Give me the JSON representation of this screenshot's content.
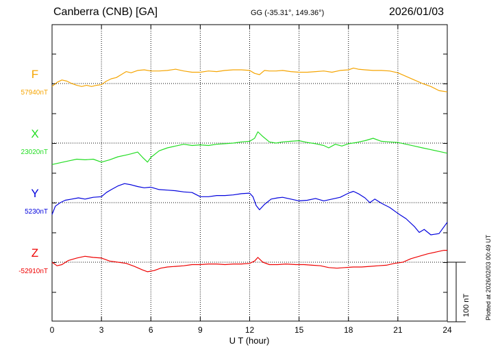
{
  "header": {
    "station": "Canberra (CNB)  [GA]",
    "coords": "GG (-35.31°, 149.36°)",
    "date": "2026/01/03"
  },
  "plotted_note": "Plotted at 2026/02/03 00:49 UT",
  "colors": {
    "F": "#f5a400",
    "X": "#22dd22",
    "Y": "#0000dd",
    "Z": "#ee0000"
  },
  "chart_data": {
    "type": "line",
    "title": "",
    "xlabel": "U T (hour)",
    "xlim": [
      0,
      24
    ],
    "xticks": [
      0,
      3,
      6,
      9,
      12,
      15,
      18,
      21,
      24
    ],
    "x_tick_labels": [
      "0",
      "3",
      "6",
      "9",
      "12",
      "15",
      "18",
      "21",
      "24"
    ],
    "scale_bar": {
      "label": "100 nT",
      "value_nT": 100
    },
    "series": [
      {
        "name": "F",
        "baseline_label": "57940nT",
        "baseline_nT": 57940,
        "x": [
          0,
          0.3,
          0.6,
          0.9,
          1.2,
          1.5,
          1.8,
          2.1,
          2.4,
          2.7,
          3,
          3.3,
          3.6,
          3.9,
          4.2,
          4.5,
          4.8,
          5.2,
          5.6,
          6,
          6.5,
          7,
          7.5,
          8,
          8.5,
          9,
          9.5,
          10,
          10.5,
          11,
          11.5,
          12,
          12.3,
          12.6,
          12.9,
          13.2,
          13.6,
          14,
          14.5,
          15,
          15.5,
          16,
          16.5,
          17,
          17.5,
          18,
          18.3,
          18.6,
          19,
          19.5,
          20,
          20.5,
          21,
          21.5,
          22,
          22.5,
          23,
          23.5,
          24
        ],
        "y": [
          57935,
          57942,
          57946,
          57944,
          57940,
          57937,
          57935,
          57937,
          57935,
          57937,
          57938,
          57944,
          57948,
          57950,
          57955,
          57960,
          57958,
          57962,
          57963,
          57961,
          57961,
          57962,
          57964,
          57961,
          57959,
          57959,
          57961,
          57960,
          57962,
          57963,
          57963,
          57962,
          57957,
          57955,
          57962,
          57961,
          57961,
          57962,
          57960,
          57959,
          57959,
          57960,
          57961,
          57959,
          57962,
          57963,
          57966,
          57964,
          57963,
          57962,
          57962,
          57961,
          57958,
          57952,
          57946,
          57940,
          57935,
          57928,
          57926
        ]
      },
      {
        "name": "X",
        "baseline_label": "23020nT",
        "baseline_nT": 23020,
        "x": [
          0,
          0.5,
          1,
          1.5,
          2,
          2.5,
          3,
          3.5,
          4,
          4.5,
          4.8,
          5.2,
          5.5,
          5.8,
          6,
          6.5,
          7,
          7.5,
          8,
          8.5,
          9,
          9.5,
          10,
          10.5,
          11,
          11.5,
          12,
          12.3,
          12.5,
          12.8,
          13.2,
          13.6,
          14,
          14.5,
          15,
          15.5,
          16,
          16.5,
          16.8,
          17.2,
          17.6,
          18,
          18.5,
          19,
          19.5,
          20,
          20.5,
          21,
          21.5,
          22,
          22.5,
          23,
          23.5,
          24
        ],
        "y": [
          22984,
          22987,
          22990,
          22993,
          22992,
          22993,
          22988,
          22992,
          22997,
          23000,
          23002,
          23005,
          22996,
          22988,
          22996,
          23007,
          23012,
          23015,
          23018,
          23016,
          23017,
          23016,
          23018,
          23019,
          23020,
          23022,
          23023,
          23028,
          23039,
          23031,
          23022,
          23020,
          23022,
          23023,
          23024,
          23021,
          23019,
          23016,
          23012,
          23018,
          23015,
          23019,
          23021,
          23024,
          23028,
          23023,
          23022,
          23021,
          23018,
          23015,
          23012,
          23009,
          23006,
          23003
        ]
      },
      {
        "name": "Y",
        "baseline_label": "5230nT",
        "baseline_nT": 5230,
        "x": [
          0,
          0.2,
          0.5,
          0.8,
          1.2,
          1.6,
          2,
          2.5,
          3,
          3.3,
          3.6,
          4,
          4.4,
          4.8,
          5.2,
          5.6,
          6,
          6.5,
          7,
          7.5,
          8,
          8.5,
          9,
          9.5,
          10,
          10.5,
          11,
          11.5,
          12,
          12.2,
          12.4,
          12.6,
          12.9,
          13.3,
          13.7,
          14,
          14.5,
          15,
          15.5,
          16,
          16.5,
          17,
          17.5,
          18,
          18.3,
          18.6,
          19,
          19.3,
          19.6,
          20,
          20.5,
          21,
          21.5,
          22,
          22.3,
          22.6,
          23,
          23.5,
          24
        ],
        "y": [
          5210,
          5224,
          5230,
          5234,
          5236,
          5238,
          5236,
          5239,
          5240,
          5247,
          5252,
          5258,
          5262,
          5260,
          5257,
          5255,
          5256,
          5252,
          5251,
          5250,
          5248,
          5247,
          5240,
          5240,
          5242,
          5242,
          5243,
          5245,
          5246,
          5240,
          5225,
          5218,
          5227,
          5236,
          5238,
          5239,
          5236,
          5233,
          5234,
          5237,
          5233,
          5236,
          5239,
          5246,
          5249,
          5245,
          5238,
          5230,
          5236,
          5229,
          5222,
          5212,
          5203,
          5190,
          5180,
          5185,
          5176,
          5178,
          5197
        ]
      },
      {
        "name": "Z",
        "baseline_label": "-52910nT",
        "baseline_nT": -52910,
        "x": [
          0,
          0.3,
          0.6,
          1,
          1.5,
          2,
          2.5,
          3,
          3.5,
          4,
          4.5,
          5,
          5.5,
          5.8,
          6.2,
          6.6,
          7,
          7.5,
          8,
          8.5,
          9,
          9.5,
          10,
          10.5,
          11,
          11.5,
          12,
          12.3,
          12.5,
          12.8,
          13.2,
          13.7,
          14.2,
          14.8,
          15.3,
          15.8,
          16.3,
          16.8,
          17.3,
          17.8,
          18.3,
          18.8,
          19.3,
          19.8,
          20.3,
          20.8,
          21.3,
          21.8,
          22.3,
          22.8,
          23.3,
          23.8,
          24
        ],
        "y": [
          -52910,
          -52916,
          -52914,
          -52907,
          -52903,
          -52900,
          -52902,
          -52903,
          -52908,
          -52910,
          -52912,
          -52917,
          -52923,
          -52926,
          -52924,
          -52920,
          -52918,
          -52917,
          -52916,
          -52914,
          -52914,
          -52913,
          -52913,
          -52914,
          -52913,
          -52913,
          -52912,
          -52908,
          -52902,
          -52910,
          -52914,
          -52914,
          -52913,
          -52914,
          -52914,
          -52915,
          -52916,
          -52919,
          -52920,
          -52919,
          -52918,
          -52918,
          -52917,
          -52916,
          -52915,
          -52912,
          -52910,
          -52904,
          -52900,
          -52896,
          -52893,
          -52890,
          -52890
        ]
      }
    ]
  }
}
